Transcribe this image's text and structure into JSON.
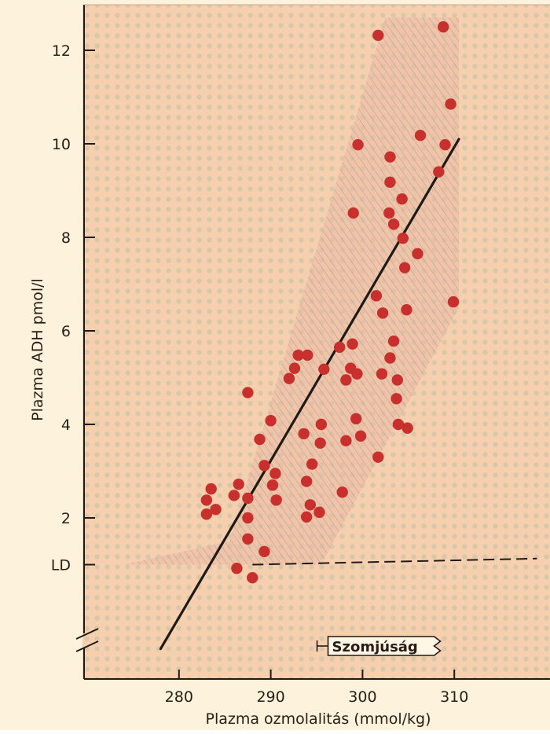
{
  "chart_data": {
    "type": "scatter",
    "xlabel": "Plazma ozmolalitás (mmol/kg)",
    "ylabel": "Plazma ADH pmol/l",
    "xlim": [
      270,
      319
    ],
    "ylim": [
      0,
      13
    ],
    "x_ticks": [
      280,
      290,
      300,
      310
    ],
    "y_ticks": [
      2,
      4,
      6,
      8,
      10,
      12
    ],
    "ld_label": "LD",
    "thirst_label": "Szomjúság",
    "thirst_x": 296.5,
    "colors": {
      "background": "#fdf3dc",
      "plot_area": "#f6cfae",
      "band": "#e7b8a3",
      "points": "#c8302e",
      "line": "#1f1a17",
      "text": "#2a1d15"
    },
    "regression_line": {
      "x": [
        278.0,
        310.5
      ],
      "y": [
        -0.8,
        10.1
      ]
    },
    "ld_line": {
      "x": [
        288.0,
        319.0
      ],
      "y": [
        1.0,
        1.13
      ]
    },
    "band": {
      "x": [
        274.0,
        285.5,
        302.5,
        310.5,
        310.5,
        295.5,
        274.0
      ],
      "y": [
        1.0,
        1.5,
        12.7,
        12.7,
        6.5,
        1.0,
        1.0
      ]
    },
    "points": [
      {
        "x": 283.5,
        "y": 2.62
      },
      {
        "x": 283.0,
        "y": 2.38
      },
      {
        "x": 284.0,
        "y": 2.18
      },
      {
        "x": 283.0,
        "y": 2.08
      },
      {
        "x": 286.5,
        "y": 2.72
      },
      {
        "x": 286.0,
        "y": 2.48
      },
      {
        "x": 287.5,
        "y": 2.42
      },
      {
        "x": 287.5,
        "y": 2.0
      },
      {
        "x": 287.5,
        "y": 1.55
      },
      {
        "x": 286.3,
        "y": 0.92
      },
      {
        "x": 288.0,
        "y": 0.72
      },
      {
        "x": 289.3,
        "y": 1.28
      },
      {
        "x": 287.5,
        "y": 4.68
      },
      {
        "x": 290.0,
        "y": 4.08
      },
      {
        "x": 288.8,
        "y": 3.68
      },
      {
        "x": 289.3,
        "y": 3.12
      },
      {
        "x": 290.5,
        "y": 2.95
      },
      {
        "x": 290.2,
        "y": 2.7
      },
      {
        "x": 290.6,
        "y": 2.38
      },
      {
        "x": 292.0,
        "y": 4.98
      },
      {
        "x": 292.6,
        "y": 5.2
      },
      {
        "x": 293.0,
        "y": 5.48
      },
      {
        "x": 294.0,
        "y": 5.48
      },
      {
        "x": 293.6,
        "y": 3.8
      },
      {
        "x": 294.5,
        "y": 3.15
      },
      {
        "x": 293.9,
        "y": 2.78
      },
      {
        "x": 294.3,
        "y": 2.28
      },
      {
        "x": 293.9,
        "y": 2.02
      },
      {
        "x": 295.3,
        "y": 2.12
      },
      {
        "x": 295.5,
        "y": 4.0
      },
      {
        "x": 295.4,
        "y": 3.6
      },
      {
        "x": 295.8,
        "y": 5.18
      },
      {
        "x": 297.5,
        "y": 5.65
      },
      {
        "x": 298.2,
        "y": 4.95
      },
      {
        "x": 298.7,
        "y": 5.2
      },
      {
        "x": 298.9,
        "y": 5.72
      },
      {
        "x": 299.4,
        "y": 5.08
      },
      {
        "x": 299.3,
        "y": 4.12
      },
      {
        "x": 299.8,
        "y": 3.75
      },
      {
        "x": 298.2,
        "y": 3.65
      },
      {
        "x": 297.8,
        "y": 2.55
      },
      {
        "x": 299.0,
        "y": 8.52
      },
      {
        "x": 299.5,
        "y": 9.98
      },
      {
        "x": 301.7,
        "y": 12.32
      },
      {
        "x": 301.5,
        "y": 6.75
      },
      {
        "x": 302.2,
        "y": 6.38
      },
      {
        "x": 302.1,
        "y": 5.08
      },
      {
        "x": 301.7,
        "y": 3.3
      },
      {
        "x": 303.0,
        "y": 9.72
      },
      {
        "x": 303.0,
        "y": 9.18
      },
      {
        "x": 302.9,
        "y": 8.52
      },
      {
        "x": 303.4,
        "y": 8.28
      },
      {
        "x": 304.3,
        "y": 8.82
      },
      {
        "x": 304.4,
        "y": 7.98
      },
      {
        "x": 304.6,
        "y": 7.35
      },
      {
        "x": 304.8,
        "y": 6.45
      },
      {
        "x": 303.4,
        "y": 5.78
      },
      {
        "x": 303.0,
        "y": 5.42
      },
      {
        "x": 303.8,
        "y": 4.95
      },
      {
        "x": 303.7,
        "y": 4.55
      },
      {
        "x": 303.9,
        "y": 4.0
      },
      {
        "x": 304.9,
        "y": 3.92
      },
      {
        "x": 306.3,
        "y": 10.18
      },
      {
        "x": 306.0,
        "y": 7.65
      },
      {
        "x": 308.8,
        "y": 12.5
      },
      {
        "x": 309.0,
        "y": 9.98
      },
      {
        "x": 308.3,
        "y": 9.4
      },
      {
        "x": 309.6,
        "y": 10.85
      },
      {
        "x": 309.9,
        "y": 6.62
      }
    ]
  }
}
